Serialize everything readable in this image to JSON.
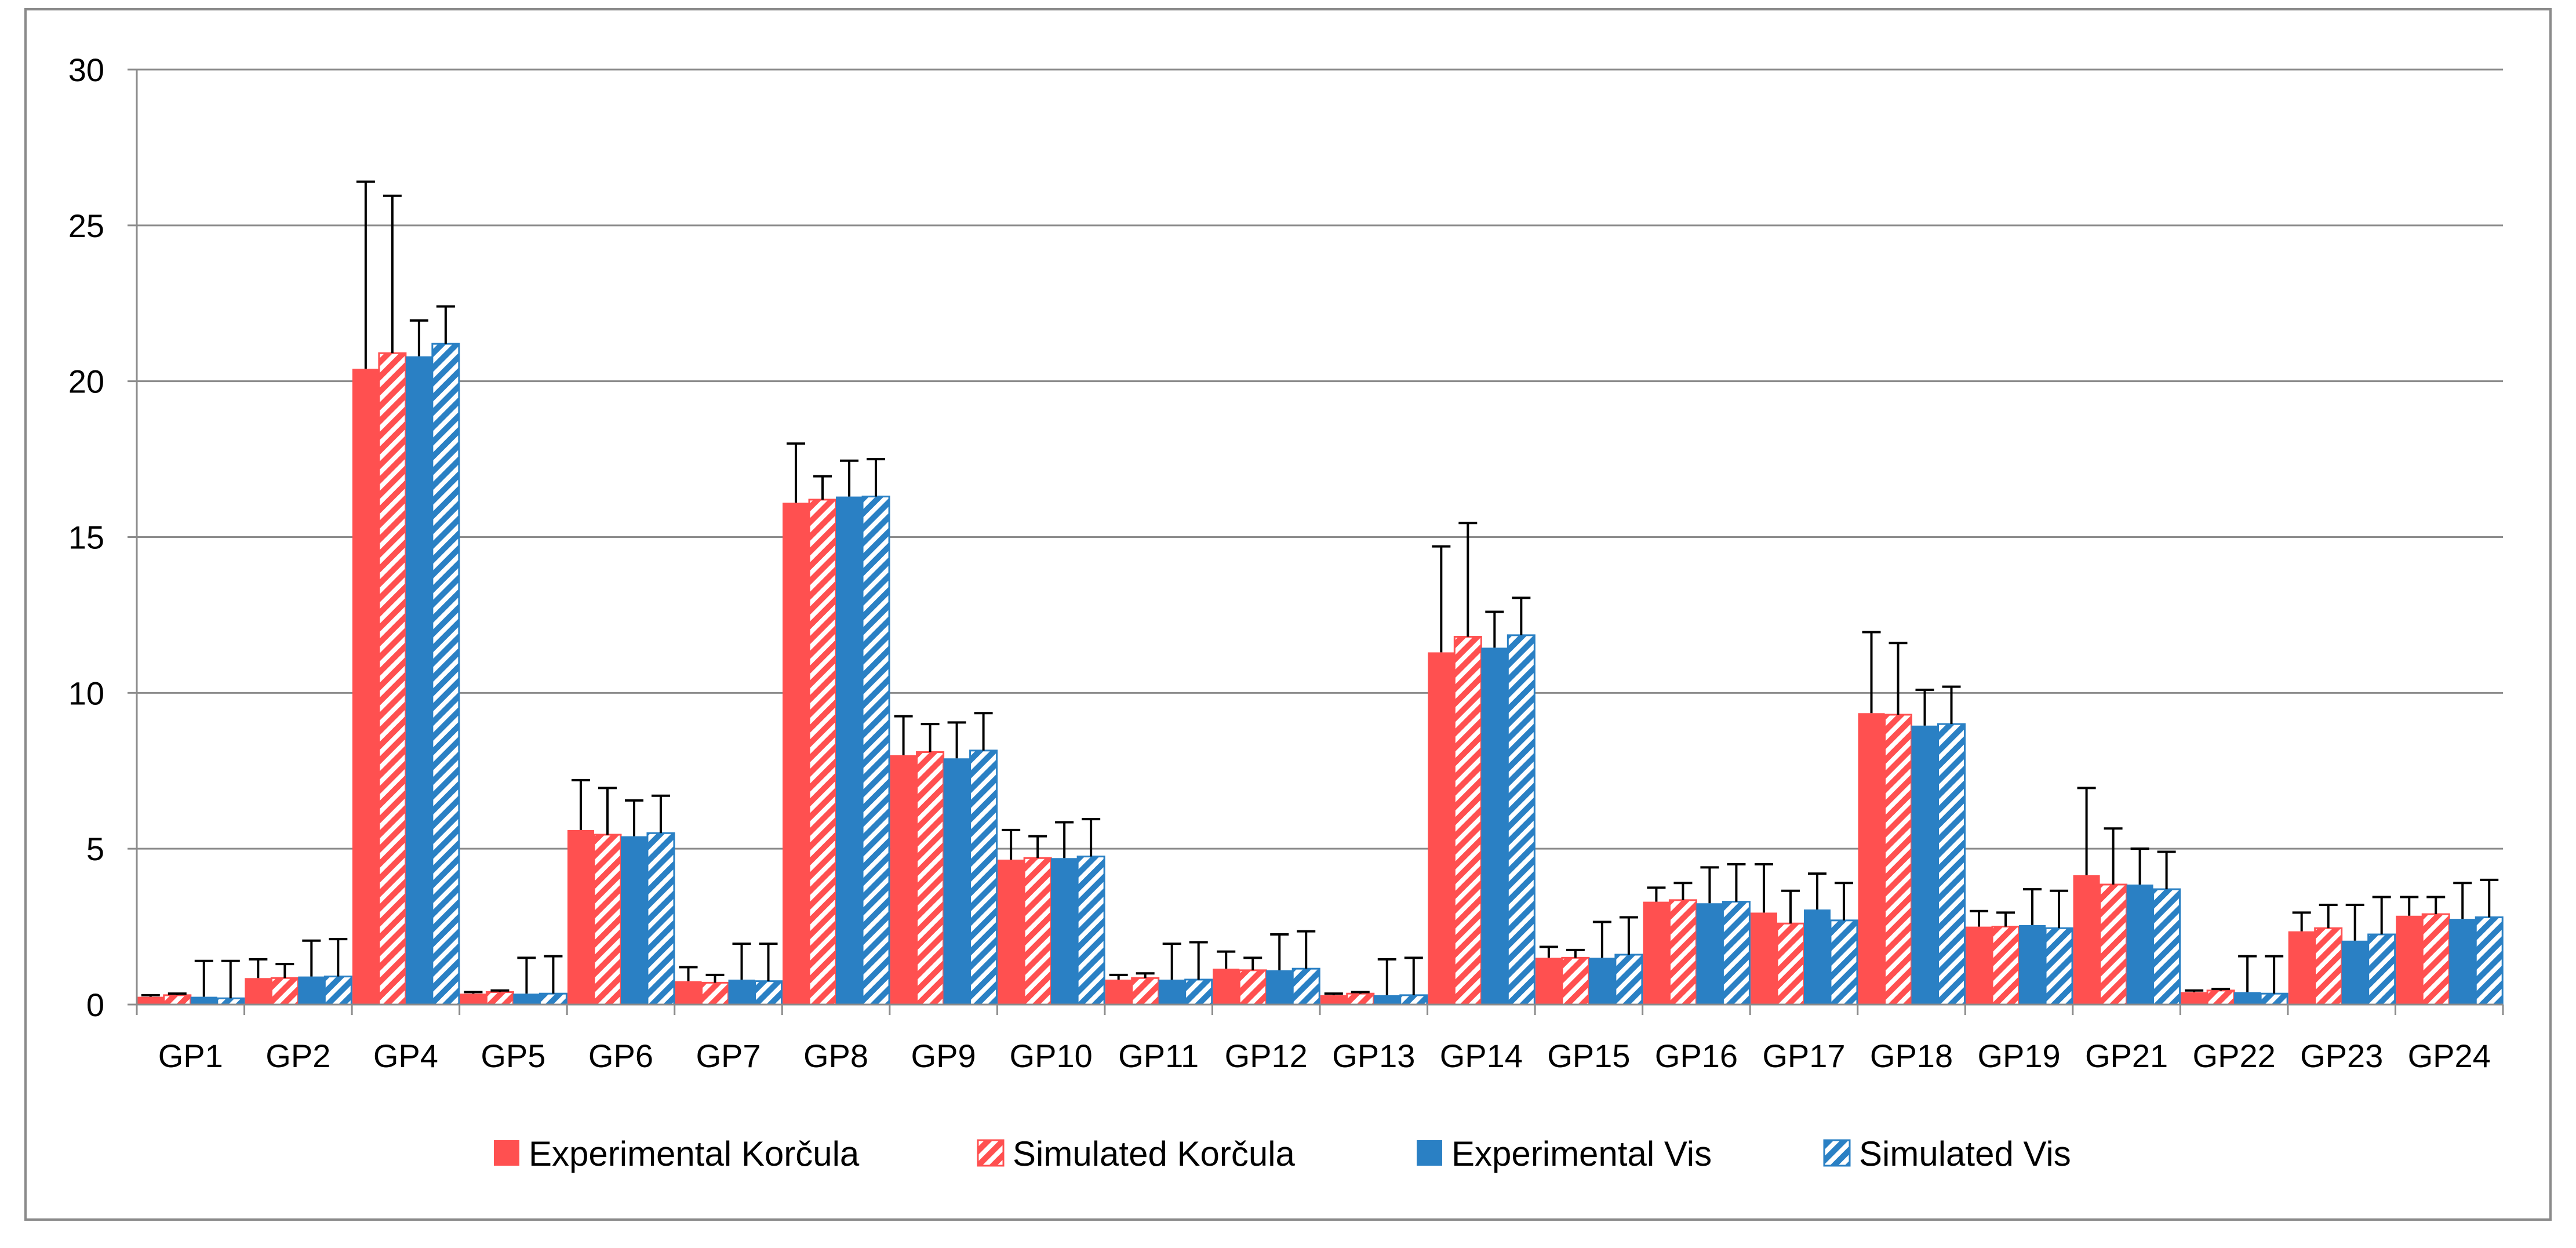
{
  "chart_data": {
    "type": "bar",
    "title": "",
    "xlabel": "",
    "ylabel": "",
    "ylim": [
      0,
      30
    ],
    "yticks": [
      0,
      5,
      10,
      15,
      20,
      25,
      30
    ],
    "grid": true,
    "legend_position": "bottom",
    "categories": [
      "GP1",
      "GP2",
      "GP4",
      "GP5",
      "GP6",
      "GP7",
      "GP8",
      "GP9",
      "GP10",
      "GP11",
      "GP12",
      "GP13",
      "GP14",
      "GP15",
      "GP16",
      "GP17",
      "GP18",
      "GP19",
      "GP21",
      "GP22",
      "GP23",
      "GP24"
    ],
    "series": [
      {
        "name": "Experimental Korčula",
        "color": "#ff5050",
        "pattern": "solid",
        "values": [
          0.25,
          0.85,
          20.4,
          0.35,
          5.6,
          0.75,
          16.1,
          8.0,
          4.65,
          0.8,
          1.15,
          0.3,
          11.3,
          1.5,
          3.3,
          2.95,
          9.35,
          2.5,
          4.15,
          0.4,
          2.35,
          2.85
        ],
        "errors": [
          0.05,
          0.6,
          6.0,
          0.05,
          1.6,
          0.45,
          1.9,
          1.25,
          0.95,
          0.15,
          0.55,
          0.05,
          3.4,
          0.35,
          0.45,
          1.55,
          2.6,
          0.5,
          2.8,
          0.05,
          0.6,
          0.6
        ]
      },
      {
        "name": "Simulated  Korčula",
        "color": "#ff5050",
        "pattern": "hatch",
        "values": [
          0.3,
          0.85,
          20.9,
          0.4,
          5.45,
          0.7,
          16.2,
          8.1,
          4.7,
          0.85,
          1.1,
          0.35,
          11.8,
          1.5,
          3.35,
          2.6,
          9.3,
          2.5,
          3.85,
          0.45,
          2.45,
          2.9
        ],
        "errors": [
          0.05,
          0.45,
          5.05,
          0.05,
          1.5,
          0.25,
          0.75,
          0.9,
          0.7,
          0.15,
          0.4,
          0.05,
          3.65,
          0.25,
          0.55,
          1.05,
          2.3,
          0.45,
          1.8,
          0.05,
          0.75,
          0.55
        ]
      },
      {
        "name": "Experimental Vis",
        "color": "#2a80c4",
        "pattern": "solid",
        "values": [
          0.25,
          0.9,
          20.8,
          0.35,
          5.4,
          0.8,
          16.3,
          7.9,
          4.7,
          0.8,
          1.1,
          0.3,
          11.45,
          1.5,
          3.25,
          3.05,
          8.95,
          2.55,
          3.85,
          0.4,
          2.05,
          2.75
        ],
        "errors": [
          1.15,
          1.15,
          1.15,
          1.15,
          1.15,
          1.15,
          1.15,
          1.15,
          1.15,
          1.15,
          1.15,
          1.15,
          1.15,
          1.15,
          1.15,
          1.15,
          1.15,
          1.15,
          1.15,
          1.15,
          1.15,
          1.15
        ]
      },
      {
        "name": "Simulated Vis",
        "color": "#2a80c4",
        "pattern": "hatch",
        "values": [
          0.2,
          0.9,
          21.2,
          0.35,
          5.5,
          0.75,
          16.3,
          8.15,
          4.75,
          0.8,
          1.15,
          0.3,
          11.85,
          1.6,
          3.3,
          2.7,
          9.0,
          2.45,
          3.7,
          0.35,
          2.25,
          2.8
        ],
        "errors": [
          1.2,
          1.2,
          1.2,
          1.2,
          1.2,
          1.2,
          1.2,
          1.2,
          1.2,
          1.2,
          1.2,
          1.2,
          1.2,
          1.2,
          1.2,
          1.2,
          1.2,
          1.2,
          1.2,
          1.2,
          1.2,
          1.2
        ]
      }
    ]
  }
}
